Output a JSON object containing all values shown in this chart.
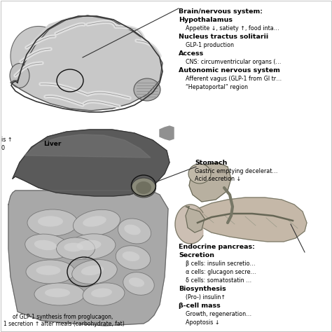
{
  "bg_color": "#ffffff",
  "text_blocks": {
    "liver_label": "Liver",
    "bottom_text1": "of GLP-1 synthesis from proglucagon,",
    "bottom_text2": "1 secretion ↑ after meals (carbohydrate, fat)",
    "left_top1": "is ↑",
    "left_top2": "0"
  },
  "colors": {
    "text": "#000000",
    "bg": "#ffffff"
  },
  "font_sizes": {
    "header": 6.8,
    "body": 5.8,
    "label": 6.5,
    "small": 5.5
  }
}
